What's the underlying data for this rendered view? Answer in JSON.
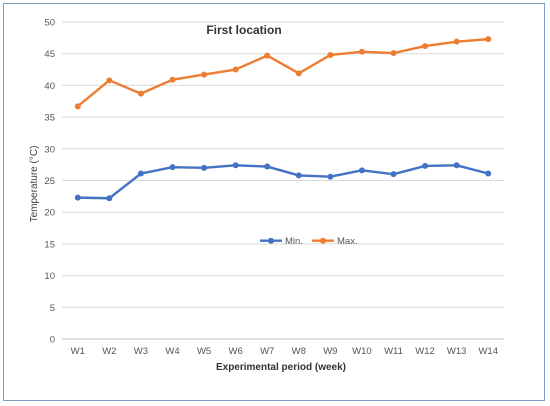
{
  "chart_data": {
    "type": "line",
    "title": "First location",
    "xlabel": "Experimental period (week)",
    "ylabel": "Temperature (°C)",
    "categories": [
      "W1",
      "W2",
      "W3",
      "W4",
      "W5",
      "W6",
      "W7",
      "W8",
      "W9",
      "W10",
      "W11",
      "W12",
      "W13",
      "W14"
    ],
    "ylim": [
      0,
      50
    ],
    "yticks": [
      "0",
      "5",
      "10",
      "15",
      "20",
      "25",
      "30",
      "35",
      "40",
      "45",
      "50"
    ],
    "grid": true,
    "legend_position": "center",
    "series": [
      {
        "name": "Min.",
        "color": "#4472c4",
        "values": [
          22.3,
          22.2,
          26.1,
          27.1,
          27.0,
          27.4,
          27.2,
          25.8,
          25.6,
          26.6,
          26.0,
          27.3,
          27.4,
          26.1
        ]
      },
      {
        "name": "Max.",
        "color": "#ed7d31",
        "values": [
          36.7,
          40.8,
          38.7,
          40.9,
          41.7,
          42.5,
          44.7,
          41.9,
          44.8,
          45.3,
          45.1,
          46.2,
          46.9,
          47.3
        ]
      }
    ]
  }
}
